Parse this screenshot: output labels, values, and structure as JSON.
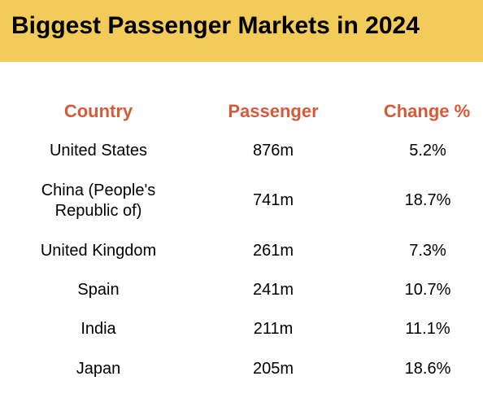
{
  "title": "Biggest Passenger Markets in 2024",
  "colors": {
    "banner": "#F2CB58",
    "header_text": "#D65A3A",
    "body_text": "#000000"
  },
  "columns": {
    "country": "Country",
    "passenger": "Passenger",
    "change": "Change %"
  },
  "rows": [
    {
      "country": "United States",
      "passenger": "876m",
      "change": "5.2%"
    },
    {
      "country": "China (People's Republic of)",
      "passenger": "741m",
      "change": "18.7%"
    },
    {
      "country": "United Kingdom",
      "passenger": "261m",
      "change": "7.3%"
    },
    {
      "country": "Spain",
      "passenger": "241m",
      "change": "10.7%"
    },
    {
      "country": "India",
      "passenger": "211m",
      "change": "11.1%"
    },
    {
      "country": "Japan",
      "passenger": "205m",
      "change": "18.6%"
    }
  ]
}
